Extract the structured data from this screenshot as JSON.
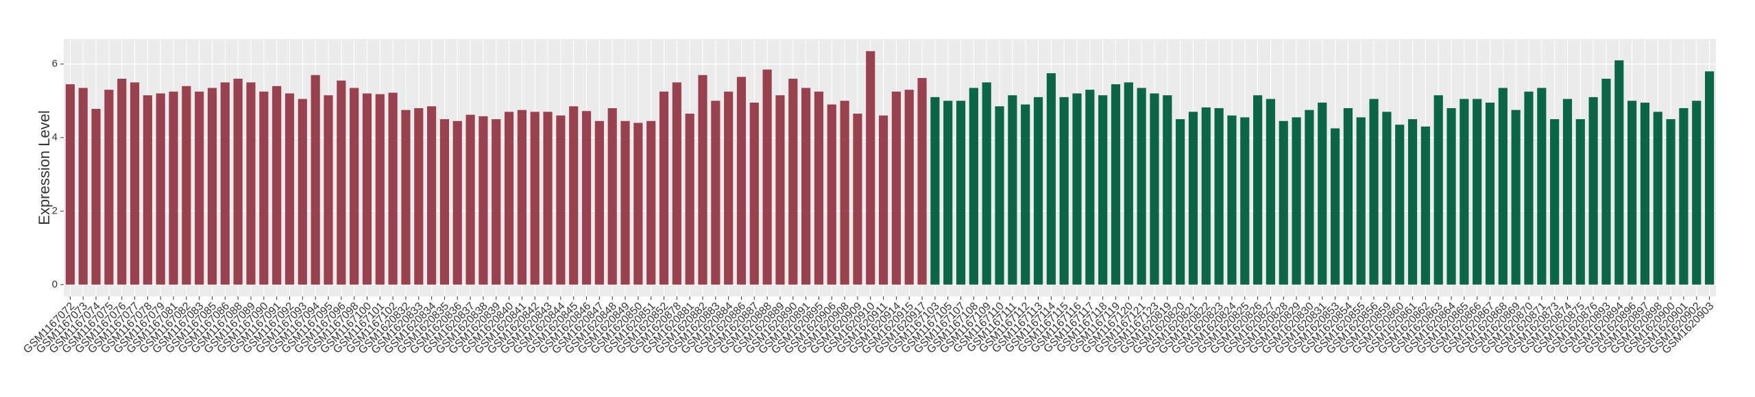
{
  "chart_data": {
    "type": "bar",
    "ylabel": "Expression Level",
    "ylim": [
      -0.32,
      6.68
    ],
    "yticks": [
      0,
      2,
      4,
      6
    ],
    "grid": true,
    "series": [
      {
        "color": "#9a4150",
        "categories": [
          "GSM1167072",
          "GSM1167073",
          "GSM1167074",
          "GSM1167075",
          "GSM1167076",
          "GSM1167077",
          "GSM1167078",
          "GSM1167079",
          "GSM1167081",
          "GSM1167082",
          "GSM1167083",
          "GSM1167085",
          "GSM1167086",
          "GSM1167088",
          "GSM1167089",
          "GSM1167090",
          "GSM1167091",
          "GSM1167092",
          "GSM1167093",
          "GSM1167094",
          "GSM1167095",
          "GSM1167096",
          "GSM1167098",
          "GSM1167100",
          "GSM1167101",
          "GSM1167102",
          "GSM1620832",
          "GSM1620833",
          "GSM1620834",
          "GSM1620835",
          "GSM1620836",
          "GSM1620837",
          "GSM1620838",
          "GSM1620839",
          "GSM1620840",
          "GSM1620841",
          "GSM1620842",
          "GSM1620843",
          "GSM1620844",
          "GSM1620845",
          "GSM1620846",
          "GSM1620847",
          "GSM1620848",
          "GSM1620849",
          "GSM1620850",
          "GSM1620851",
          "GSM1620852",
          "GSM1620878",
          "GSM1620881",
          "GSM1620882",
          "GSM1620883",
          "GSM1620884",
          "GSM1620886",
          "GSM1620887",
          "GSM1620888",
          "GSM1620889",
          "GSM1620890",
          "GSM1620891",
          "GSM1620895",
          "GSM1620906",
          "GSM1620908",
          "GSM1620909",
          "GSM1620910",
          "GSM1620911",
          "GSM1620914",
          "GSM1620915",
          "GSM1620917"
        ],
        "values": [
          5.45,
          5.35,
          4.78,
          5.3,
          5.6,
          5.5,
          5.15,
          5.2,
          5.25,
          5.4,
          5.25,
          5.35,
          5.5,
          5.6,
          5.5,
          5.25,
          5.4,
          5.2,
          5.05,
          5.7,
          5.15,
          5.55,
          5.35,
          5.2,
          5.18,
          5.22,
          4.75,
          4.8,
          4.85,
          4.5,
          4.45,
          4.62,
          4.58,
          4.5,
          4.7,
          4.75,
          4.7,
          4.7,
          4.6,
          4.85,
          4.72,
          4.45,
          4.8,
          4.45,
          4.4,
          4.45,
          5.25,
          5.5,
          4.65,
          5.7,
          5.0,
          5.25,
          5.65,
          4.95,
          5.85,
          5.15,
          5.6,
          5.35,
          5.25,
          4.9,
          5.0,
          4.65,
          6.35,
          4.6,
          5.25,
          5.3,
          5.62
        ]
      },
      {
        "color": "#0b6647",
        "categories": [
          "GSM1167103",
          "GSM1167105",
          "GSM1167107",
          "GSM1167108",
          "GSM1167109",
          "GSM1167110",
          "GSM1167111",
          "GSM1167112",
          "GSM1167113",
          "GSM1167114",
          "GSM1167115",
          "GSM1167116",
          "GSM1167117",
          "GSM1167118",
          "GSM1167119",
          "GSM1167120",
          "GSM1167121",
          "GSM1167123",
          "GSM1620819",
          "GSM1620820",
          "GSM1620821",
          "GSM1620822",
          "GSM1620823",
          "GSM1620824",
          "GSM1620825",
          "GSM1620826",
          "GSM1620827",
          "GSM1620828",
          "GSM1620829",
          "GSM1620830",
          "GSM1620831",
          "GSM1620853",
          "GSM1620854",
          "GSM1620855",
          "GSM1620856",
          "GSM1620859",
          "GSM1620860",
          "GSM1620861",
          "GSM1620862",
          "GSM1620863",
          "GSM1620864",
          "GSM1620865",
          "GSM1620866",
          "GSM1620867",
          "GSM1620868",
          "GSM1620869",
          "GSM1620870",
          "GSM1620871",
          "GSM1620873",
          "GSM1620874",
          "GSM1620875",
          "GSM1620876",
          "GSM1620893",
          "GSM1620894",
          "GSM1620896",
          "GSM1620897",
          "GSM1620898",
          "GSM1620900",
          "GSM1620901",
          "GSM1620902",
          "GSM1620903"
        ],
        "values": [
          5.1,
          5.0,
          5.0,
          5.35,
          5.5,
          4.85,
          5.15,
          4.9,
          5.1,
          5.75,
          5.1,
          5.2,
          5.3,
          5.15,
          5.45,
          5.5,
          5.35,
          5.2,
          5.15,
          4.5,
          4.7,
          4.82,
          4.8,
          4.6,
          4.55,
          5.15,
          5.05,
          4.45,
          4.55,
          4.75,
          4.95,
          4.25,
          4.8,
          4.55,
          5.05,
          4.7,
          4.35,
          4.5,
          4.3,
          5.15,
          4.8,
          5.05,
          5.05,
          4.95,
          5.35,
          4.75,
          5.25,
          5.35,
          4.5,
          5.05,
          4.5,
          5.1,
          5.6,
          6.1,
          5.0,
          4.95,
          4.7,
          4.5,
          4.8,
          5.0,
          5.8
        ]
      }
    ]
  }
}
